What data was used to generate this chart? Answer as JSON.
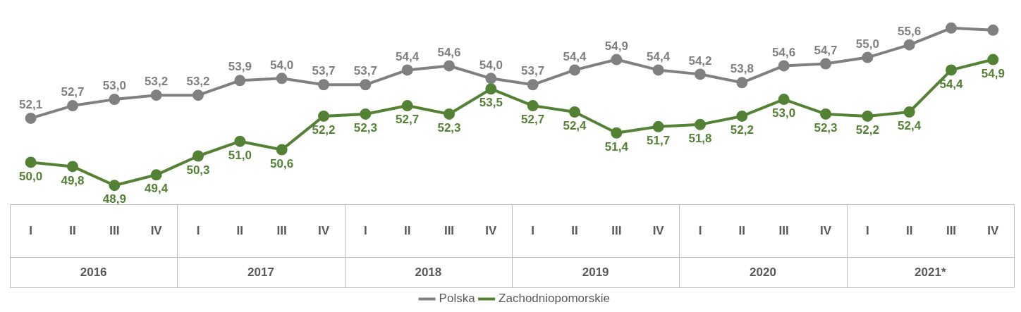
{
  "chart_data": {
    "type": "line",
    "categories": [
      "I",
      "II",
      "III",
      "IV",
      "I",
      "II",
      "III",
      "IV",
      "I",
      "II",
      "III",
      "IV",
      "I",
      "II",
      "III",
      "IV",
      "I",
      "II",
      "III",
      "IV",
      "I",
      "II",
      "III",
      "IV"
    ],
    "series": [
      {
        "name": "Polska",
        "color": "#808080",
        "values": [
          52.1,
          52.7,
          53.0,
          53.2,
          53.2,
          53.9,
          54.0,
          53.7,
          53.7,
          54.4,
          54.6,
          54.0,
          53.7,
          54.4,
          54.9,
          54.4,
          54.2,
          53.8,
          54.6,
          54.7,
          55.0,
          55.6,
          56.4,
          56.3
        ],
        "value_labels": [
          "52,1",
          "52,7",
          "53,0",
          "53,2",
          "53,2",
          "53,9",
          "54,0",
          "53,7",
          "53,7",
          "54,4",
          "54,6",
          "54,0",
          "53,7",
          "54,4",
          "54,9",
          "54,4",
          "54,2",
          "53,8",
          "54,6",
          "54,7",
          "55,0",
          "55,6",
          null,
          null
        ]
      },
      {
        "name": "Zachodniopomorskie",
        "color": "#548235",
        "values": [
          50.0,
          49.8,
          48.9,
          49.4,
          50.3,
          51.0,
          50.6,
          52.2,
          52.3,
          52.7,
          52.3,
          53.5,
          52.7,
          52.4,
          51.4,
          51.7,
          51.8,
          52.2,
          53.0,
          52.3,
          52.2,
          52.4,
          54.4,
          54.9
        ],
        "value_labels": [
          "50,0",
          "49,8",
          "48,9",
          "49,4",
          "50,3",
          "51,0",
          "50,6",
          "52,2",
          "52,3",
          "52,7",
          "52,3",
          "53,5",
          "52,7",
          "52,4",
          "51,4",
          "51,7",
          "51,8",
          "52,2",
          "53,0",
          "52,3",
          "52,2",
          "52,4",
          "54,4",
          "54,9"
        ]
      }
    ],
    "annotations": [
      "2016",
      "2017",
      "2018",
      "2019",
      "2020",
      "2021*"
    ],
    "tick_labels": "x",
    "grid": false,
    "legend": "bottom",
    "marker": "circle",
    "line_style": "solid"
  }
}
